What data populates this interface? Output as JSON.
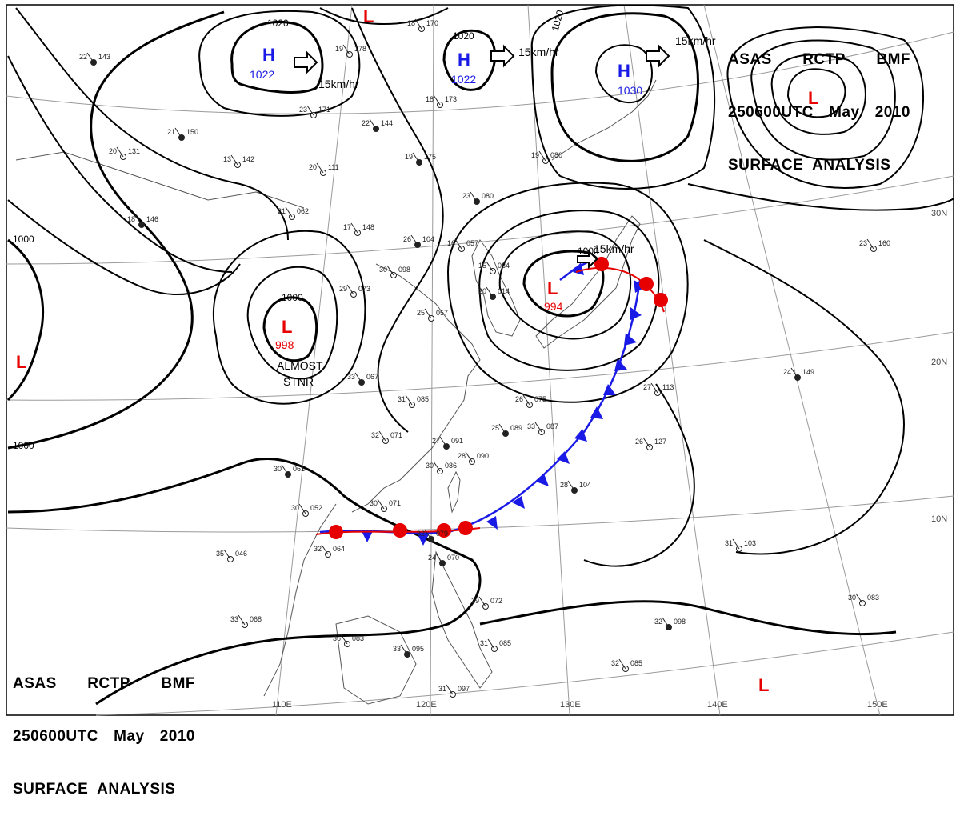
{
  "header": {
    "line1": [
      "ASAS",
      "RCTP",
      "BMF"
    ],
    "line2": [
      "250600UTC",
      "May",
      "2010"
    ],
    "line3": "SURFACE  ANALYSIS"
  },
  "graticule": {
    "lat_labels": [
      "30N",
      "20N",
      "10N"
    ],
    "lon_labels": [
      "110E",
      "120E",
      "130E",
      "140E",
      "150E"
    ]
  },
  "isobars": {
    "labels": [
      "1020",
      "1020",
      "1020",
      "1000",
      "1000",
      "1000",
      "1000"
    ]
  },
  "pressure_centers": [
    {
      "type": "H",
      "value": "1022",
      "color": "#1a1ae6"
    },
    {
      "type": "H",
      "value": "1022",
      "color": "#1a1ae6"
    },
    {
      "type": "H",
      "value": "1030",
      "color": "#1a1ae6"
    },
    {
      "type": "L",
      "value": "998",
      "color": "#e60000"
    },
    {
      "type": "L",
      "value": "994",
      "color": "#e60000"
    },
    {
      "type": "L",
      "value": "",
      "color": "#e60000"
    },
    {
      "type": "L",
      "value": "",
      "color": "#e60000"
    },
    {
      "type": "L",
      "value": "",
      "color": "#e60000"
    },
    {
      "type": "L",
      "value": "",
      "color": "#e60000"
    }
  ],
  "motion_labels": [
    "15km/hr",
    "15km/hr",
    "15km/hr",
    "15km/hr"
  ],
  "annotations": {
    "stationary_1": "ALMOST",
    "stationary_2": "STNR"
  },
  "colors": {
    "high": "#1a1ae6",
    "low": "#e60000",
    "cold_front": "#1a1ae6",
    "warm_front": "#e60000",
    "coast": "#555555",
    "isobar": "#000000"
  },
  "stations": [
    {
      "t": "22",
      "p": "143"
    },
    {
      "t": "19",
      "p": "178"
    },
    {
      "t": "23",
      "p": "171"
    },
    {
      "t": "22",
      "p": "144"
    },
    {
      "t": "13",
      "p": "142"
    },
    {
      "t": "20",
      "p": "111"
    },
    {
      "t": "18",
      "p": "146"
    },
    {
      "t": "21",
      "p": "062"
    },
    {
      "t": "17",
      "p": "148"
    },
    {
      "t": "26",
      "p": "104"
    },
    {
      "t": "30",
      "p": "098"
    },
    {
      "t": "29",
      "p": "073"
    },
    {
      "t": "23",
      "p": "080"
    },
    {
      "t": "15",
      "p": "084"
    },
    {
      "t": "16",
      "p": "057"
    },
    {
      "t": "20",
      "p": "014"
    },
    {
      "t": "19",
      "p": "080"
    },
    {
      "t": "25",
      "p": "057"
    },
    {
      "t": "33",
      "p": "067"
    },
    {
      "t": "31",
      "p": "085"
    },
    {
      "t": "32",
      "p": "071"
    },
    {
      "t": "27",
      "p": "091"
    },
    {
      "t": "28",
      "p": "090"
    },
    {
      "t": "30",
      "p": "086"
    },
    {
      "t": "30",
      "p": "061"
    },
    {
      "t": "30",
      "p": "052"
    },
    {
      "t": "30",
      "p": "071"
    },
    {
      "t": "32",
      "p": "079"
    },
    {
      "t": "32",
      "p": "064"
    },
    {
      "t": "35",
      "p": "046"
    },
    {
      "t": "24",
      "p": "070"
    },
    {
      "t": "33",
      "p": "068"
    },
    {
      "t": "36",
      "p": "083"
    },
    {
      "t": "33",
      "p": "095"
    },
    {
      "t": "31",
      "p": "097"
    },
    {
      "t": "31",
      "p": "085"
    },
    {
      "t": "28",
      "p": "104"
    },
    {
      "t": "27",
      "p": "113"
    },
    {
      "t": "26",
      "p": "127"
    },
    {
      "t": "24",
      "p": "149"
    },
    {
      "t": "31",
      "p": "103"
    },
    {
      "t": "30",
      "p": "083"
    },
    {
      "t": "32",
      "p": "098"
    },
    {
      "t": "32",
      "p": "085"
    },
    {
      "t": "23",
      "p": "160"
    },
    {
      "t": "19",
      "p": "175"
    },
    {
      "t": "18",
      "p": "170"
    },
    {
      "t": "18",
      "p": "173"
    },
    {
      "t": "21",
      "p": "150"
    },
    {
      "t": "26",
      "p": "075"
    },
    {
      "t": "33",
      "p": "087"
    },
    {
      "t": "25",
      "p": "089"
    },
    {
      "t": "29",
      "p": "072"
    },
    {
      "t": "20",
      "p": "131"
    }
  ]
}
